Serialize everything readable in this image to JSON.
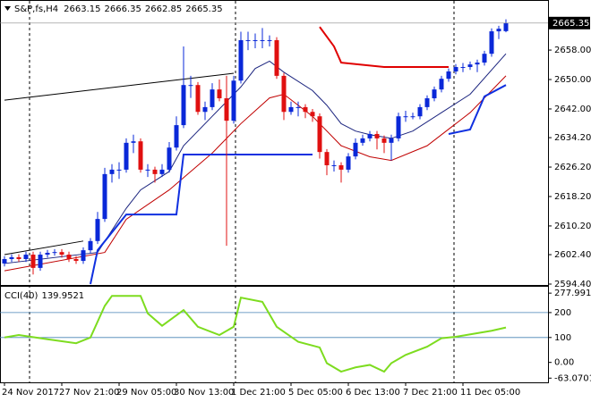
{
  "chart_data": [
    {
      "type": "candlestick",
      "title": "S&P,fs,H4",
      "categories": [
        "24 Nov 2017",
        "27 Nov 21:00",
        "29 Nov 05:00",
        "30 Nov 13:00",
        "1 Dec 21:00",
        "5 Dec 05:00",
        "6 Dec 13:00",
        "7 Dec 21:00",
        "11 Dec 05:00"
      ],
      "ylim": [
        2594.4,
        2670.4
      ],
      "yticks": [
        {
          "value": 2658,
          "label": "2658.00"
        },
        {
          "value": 2650,
          "label": "2650.00"
        },
        {
          "value": 2642,
          "label": "2642.00"
        },
        {
          "value": 2634.2,
          "label": "2634.20"
        },
        {
          "value": 2626.2,
          "label": "2626.20"
        },
        {
          "value": 2618.2,
          "label": "2618.20"
        },
        {
          "value": 2610.2,
          "label": "2610.20"
        },
        {
          "value": 2602.4,
          "label": "2602.40"
        },
        {
          "value": 2594.4,
          "label": "2594.40"
        }
      ],
      "up_color": "#0a28d8",
      "down_color": "#e01010",
      "ohlc": [
        [
          2600.0,
          2602.0,
          2599.2,
          2601.2
        ],
        [
          2601.2,
          2602.5,
          2600.4,
          2601.7
        ],
        [
          2601.7,
          2602.5,
          2600.4,
          2601.2
        ],
        [
          2601.2,
          2603.2,
          2600.4,
          2602.4
        ],
        [
          2602.4,
          2603.2,
          2597.0,
          2598.8
        ],
        [
          2598.8,
          2603.2,
          2598.0,
          2602.4
        ],
        [
          2602.4,
          2603.7,
          2601.6,
          2602.9
        ],
        [
          2602.9,
          2603.9,
          2602.1,
          2603.1
        ],
        [
          2603.1,
          2603.9,
          2601.6,
          2602.4
        ],
        [
          2602.4,
          2603.2,
          2600.4,
          2601.2
        ],
        [
          2601.2,
          2602.0,
          2599.9,
          2600.7
        ],
        [
          2600.7,
          2604.4,
          2599.9,
          2603.6
        ],
        [
          2603.6,
          2606.9,
          2602.8,
          2606.1
        ],
        [
          2606.1,
          2614.0,
          2605.3,
          2612.1
        ],
        [
          2612.1,
          2626.0,
          2611.3,
          2624.3
        ],
        [
          2624.3,
          2627.0,
          2622.0,
          2625.5
        ],
        [
          2625.5,
          2627.5,
          2623.0,
          2625.5
        ],
        [
          2625.5,
          2634.0,
          2624.7,
          2632.8
        ],
        [
          2632.8,
          2635.0,
          2630.0,
          2633.2
        ],
        [
          2633.2,
          2634.0,
          2624.7,
          2625.5
        ],
        [
          2625.5,
          2627.0,
          2623.5,
          2625.5
        ],
        [
          2625.5,
          2626.3,
          2622.0,
          2624.3
        ],
        [
          2624.3,
          2627.0,
          2623.5,
          2625.5
        ],
        [
          2625.5,
          2633.0,
          2624.7,
          2631.5
        ],
        [
          2631.5,
          2640.0,
          2630.7,
          2637.6
        ],
        [
          2637.6,
          2659.0,
          2636.8,
          2648.5
        ],
        [
          2648.5,
          2651.0,
          2645.0,
          2648.5
        ],
        [
          2648.5,
          2649.3,
          2640.4,
          2641.2
        ],
        [
          2641.2,
          2644.0,
          2639.0,
          2642.5
        ],
        [
          2642.5,
          2649.0,
          2641.7,
          2647.3
        ],
        [
          2647.3,
          2650.0,
          2644.1,
          2644.9
        ],
        [
          2644.9,
          2651.0,
          2604.8,
          2638.8
        ],
        [
          2638.8,
          2651.0,
          2638.0,
          2649.7
        ],
        [
          2649.7,
          2663.0,
          2648.9,
          2660.7
        ],
        [
          2660.7,
          2663.0,
          2658.0,
          2660.7
        ],
        [
          2660.7,
          2662.5,
          2658.5,
          2660.7
        ],
        [
          2660.7,
          2664.0,
          2658.5,
          2660.7
        ],
        [
          2660.7,
          2662.0,
          2659.0,
          2660.7
        ],
        [
          2660.7,
          2661.5,
          2650.2,
          2651.0
        ],
        [
          2651.0,
          2651.8,
          2639.0,
          2641.2
        ],
        [
          2641.2,
          2644.0,
          2640.4,
          2642.5
        ],
        [
          2642.5,
          2644.0,
          2640.0,
          2642.5
        ],
        [
          2642.5,
          2643.3,
          2639.5,
          2641.2
        ],
        [
          2641.2,
          2642.0,
          2638.5,
          2640.0
        ],
        [
          2640.0,
          2640.8,
          2628.5,
          2630.3
        ],
        [
          2630.3,
          2631.1,
          2624.0,
          2626.7
        ],
        [
          2626.7,
          2628.0,
          2625.0,
          2626.7
        ],
        [
          2626.7,
          2627.5,
          2622.0,
          2625.5
        ],
        [
          2625.5,
          2630.0,
          2624.7,
          2629.1
        ],
        [
          2629.1,
          2634.0,
          2628.3,
          2632.8
        ],
        [
          2632.8,
          2635.0,
          2632.0,
          2634.0
        ],
        [
          2634.0,
          2636.0,
          2633.2,
          2635.2
        ],
        [
          2635.2,
          2636.0,
          2631.0,
          2634.0
        ],
        [
          2634.0,
          2634.8,
          2630.0,
          2632.8
        ],
        [
          2632.8,
          2635.0,
          2628.0,
          2634.0
        ],
        [
          2634.0,
          2641.0,
          2633.2,
          2640.0
        ],
        [
          2640.0,
          2641.5,
          2638.5,
          2640.0
        ],
        [
          2640.0,
          2641.0,
          2639.2,
          2640.0
        ],
        [
          2640.0,
          2643.3,
          2639.2,
          2642.5
        ],
        [
          2642.5,
          2645.7,
          2641.7,
          2644.9
        ],
        [
          2644.9,
          2648.1,
          2644.1,
          2647.3
        ],
        [
          2647.3,
          2651.0,
          2646.5,
          2650.2
        ],
        [
          2650.2,
          2653.0,
          2649.4,
          2652.2
        ],
        [
          2652.2,
          2654.2,
          2651.4,
          2653.4
        ],
        [
          2653.4,
          2654.5,
          2652.0,
          2653.4
        ],
        [
          2653.4,
          2654.9,
          2652.6,
          2654.1
        ],
        [
          2654.1,
          2655.4,
          2652.0,
          2654.6
        ],
        [
          2654.6,
          2657.8,
          2653.8,
          2657.0
        ],
        [
          2657.0,
          2663.9,
          2656.2,
          2663.1
        ],
        [
          2663.1,
          2664.6,
          2661.0,
          2663.8
        ],
        [
          2663.15,
          2666.35,
          2662.85,
          2665.35
        ]
      ],
      "lines": [
        {
          "color": "#1a237e",
          "width": 1,
          "x": [
            0,
            13,
            17,
            19,
            23,
            25,
            29,
            33,
            35,
            37,
            39,
            43,
            45,
            47,
            49,
            51,
            54,
            57,
            61,
            65,
            70
          ],
          "values": [
            2600,
            2603,
            2615,
            2620,
            2625,
            2632,
            2640,
            2648,
            2653,
            2655,
            2652,
            2647,
            2643,
            2638,
            2636,
            2635,
            2634,
            2636,
            2641,
            2646,
            2657
          ]
        },
        {
          "color": "#c00000",
          "width": 1,
          "x": [
            0,
            14,
            17,
            23,
            29,
            33,
            37,
            39,
            43,
            47,
            51,
            54,
            59,
            65,
            70
          ],
          "values": [
            2598,
            2603,
            2612,
            2620,
            2630,
            2638,
            2645,
            2646,
            2640,
            2632,
            2629,
            2628,
            2632,
            2641,
            2651
          ]
        },
        {
          "color": "#e00000",
          "width": 2,
          "x": [
            44,
            46,
            47,
            53,
            62
          ],
          "values": [
            2664.3,
            2659,
            2654.6,
            2653.4,
            2653.4
          ]
        },
        {
          "color": "#1030e0",
          "width": 2,
          "x": [
            12,
            13,
            17,
            24,
            25,
            43,
            44,
            62,
            65,
            67,
            70
          ],
          "values": [
            2594.4,
            2603.6,
            2613.3,
            2613.3,
            2629.6,
            2629.6,
            null,
            2635.2,
            2636.4,
            2645.4,
            2648.5
          ]
        },
        {
          "color": "#000000",
          "width": 1,
          "x": [
            0,
            32
          ],
          "values": [
            2644.4,
            2651.7
          ]
        },
        {
          "color": "#000000",
          "width": 1,
          "x": [
            0,
            11
          ],
          "values": [
            2602.4,
            2606.1
          ]
        }
      ]
    },
    {
      "type": "line",
      "title": "CCI(40)",
      "ylim": [
        -80,
        300
      ],
      "yticks": [
        277.991,
        200,
        100,
        {
          "value": 0,
          "label": "0.00"
        },
        -63.0701
      ],
      "levels": [
        200,
        100
      ],
      "level_color": "#4682b4",
      "series": [
        {
          "color": "#7ddc1f",
          "x": [
            0,
            2,
            6,
            10,
            12,
            14,
            15,
            19,
            20,
            22,
            25,
            27,
            30,
            32,
            33,
            36,
            38,
            41,
            44,
            45,
            47,
            49,
            51,
            53,
            54,
            56,
            59,
            61,
            63,
            68,
            70
          ],
          "values": [
            100,
            110,
            93,
            77,
            100,
            227,
            267,
            267,
            197,
            147,
            210,
            143,
            110,
            143,
            260,
            243,
            143,
            83,
            60,
            -3,
            -37,
            -20,
            -10,
            -37,
            -3,
            30,
            63,
            97,
            103,
            127,
            139.9521
          ]
        }
      ]
    }
  ]
}
